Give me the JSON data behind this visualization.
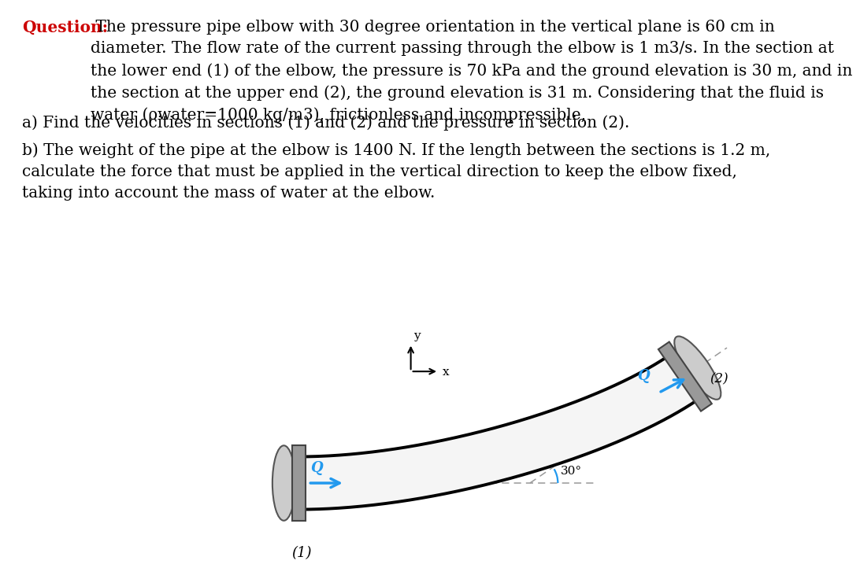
{
  "bg_color": "#ffffff",
  "text_color": "#000000",
  "question_label_color": "#cc0000",
  "question_label": "Question:",
  "question_rest": " The pressure pipe elbow with 30 degree orientation in the vertical plane is 60 cm in\ndiameter. The flow rate of the current passing through the elbow is 1 m3/s. In the section at\nthe lower end (1) of the elbow, the pressure is 70 kPa and the ground elevation is 30 m, and in\nthe section at the upper end (2), the ground elevation is 31 m. Considering that the fluid is\nwater (ρwater=1000 kg/m3), frictionless and incompressible,",
  "part_a": "a) Find the velocities in sections (1) and (2) and the pressure in section (2).",
  "part_b": "b) The weight of the pipe at the elbow is 1400 N. If the length between the sections is 1.2 m,\ncalculate the force that must be applied in the vertical direction to keep the elbow fixed,\ntaking into account the mass of water at the elbow.",
  "arrow_color": "#2299ee",
  "pipe_fill_color": "#ffffff",
  "flange_color": "#aaaaaa",
  "dashed_color": "#999999",
  "angle_arc_color": "#2299ee",
  "label_1": "(1)",
  "label_2": "(2)",
  "Q_label": "Q",
  "angle_label": "30°",
  "coord_x_label": "x",
  "coord_y_label": "y"
}
